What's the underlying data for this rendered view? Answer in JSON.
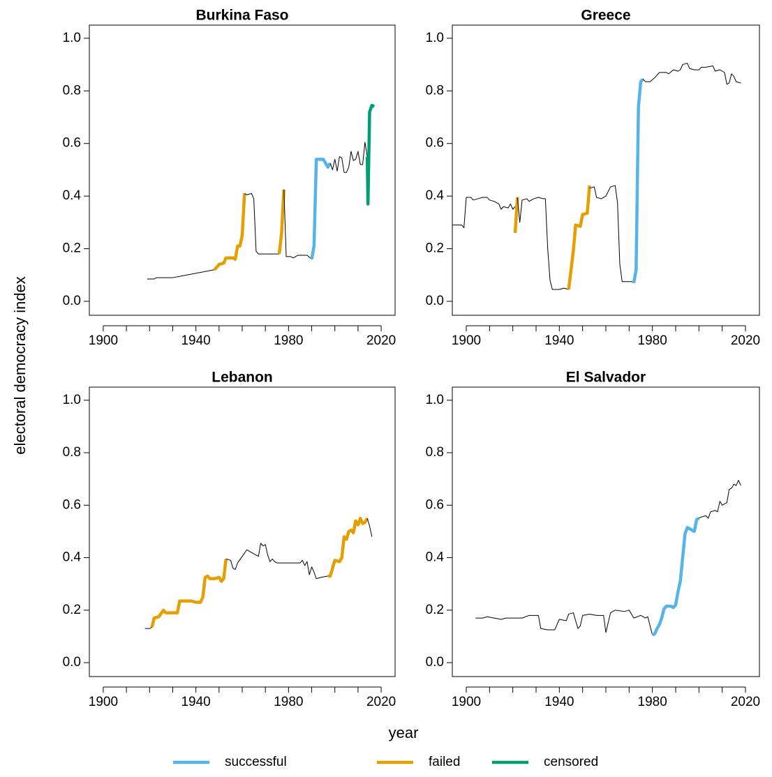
{
  "x_label": "year",
  "y_label": "electoral democracy index",
  "legend": [
    {
      "name": "successful",
      "color": "#56B4E9"
    },
    {
      "name": "failed",
      "color": "#E69F00"
    },
    {
      "name": "censored",
      "color": "#009E73"
    }
  ],
  "chart_data": [
    {
      "type": "line",
      "title": "Burkina Faso",
      "xlim": [
        1894,
        2026
      ],
      "ylim": [
        -0.053,
        1.05
      ],
      "xticks": [
        1900,
        1940,
        1980,
        2020
      ],
      "xminorticks": [
        1910,
        1920,
        1930,
        1950,
        1960,
        1970,
        1990,
        2000,
        2010
      ],
      "yticks": [
        {
          "value": 0,
          "label": "0.0"
        },
        0.2,
        0.4,
        0.6,
        0.8,
        {
          "value": 1,
          "label": "1.0"
        }
      ],
      "series": [
        {
          "color": "#000000",
          "x": [
            1919,
            1922,
            1923,
            1930,
            1948
          ],
          "values": [
            0.085,
            0.085,
            0.09,
            0.09,
            0.12
          ]
        },
        {
          "color": "#E69F00",
          "x": [
            1948,
            1950,
            1952,
            1953,
            1956,
            1957,
            1958,
            1959,
            1960,
            1961
          ],
          "values": [
            0.12,
            0.14,
            0.145,
            0.165,
            0.165,
            0.16,
            0.21,
            0.21,
            0.25,
            0.41
          ]
        },
        {
          "color": "#000000",
          "x": [
            1961,
            1962,
            1964,
            1965,
            1966,
            1967,
            1975,
            1976
          ],
          "values": [
            0.41,
            0.405,
            0.41,
            0.39,
            0.19,
            0.18,
            0.18,
            0.18
          ]
        },
        {
          "color": "#E69F00",
          "x": [
            1976,
            1977,
            1978
          ],
          "values": [
            0.18,
            0.26,
            0.425
          ]
        },
        {
          "color": "#000000",
          "x": [
            1978,
            1979,
            1981,
            1982,
            1984,
            1988,
            1990
          ],
          "values": [
            0.425,
            0.17,
            0.17,
            0.165,
            0.175,
            0.175,
            0.16
          ]
        },
        {
          "color": "#56B4E9",
          "x": [
            1990,
            1991,
            1992,
            1995,
            1997,
            1998
          ],
          "values": [
            0.16,
            0.21,
            0.54,
            0.54,
            0.51,
            0.525
          ]
        },
        {
          "color": "#000000",
          "x": [
            1998,
            1999,
            2000,
            2001,
            2002,
            2003,
            2004,
            2005,
            2006,
            2007,
            2008,
            2009,
            2010,
            2011,
            2012,
            2013,
            2014
          ],
          "values": [
            0.525,
            0.5,
            0.54,
            0.495,
            0.55,
            0.545,
            0.49,
            0.49,
            0.51,
            0.57,
            0.535,
            0.54,
            0.57,
            0.52,
            0.52,
            0.605,
            0.55
          ]
        },
        {
          "color": "#009E73",
          "x": [
            2014,
            2014.3,
            2015,
            2016,
            2017
          ],
          "values": [
            0.55,
            0.37,
            0.72,
            0.745,
            0.74
          ]
        }
      ]
    },
    {
      "type": "line",
      "title": "Greece",
      "xlim": [
        1894,
        2026
      ],
      "ylim": [
        -0.053,
        1.05
      ],
      "xticks": [
        1900,
        1940,
        1980,
        2020
      ],
      "xminorticks": [
        1910,
        1920,
        1930,
        1950,
        1960,
        1970,
        1990,
        2000,
        2010
      ],
      "yticks": [
        {
          "value": 0,
          "label": "0.0"
        },
        0.2,
        0.4,
        0.6,
        0.8,
        {
          "value": 1,
          "label": "1.0"
        }
      ],
      "series": [
        {
          "color": "#000000",
          "x": [
            1894,
            1898,
            1899,
            1900,
            1902,
            1903,
            1905,
            1907,
            1909,
            1910,
            1912,
            1914,
            1915,
            1916,
            1918,
            1919,
            1920,
            1921
          ],
          "values": [
            0.29,
            0.29,
            0.28,
            0.395,
            0.395,
            0.385,
            0.39,
            0.395,
            0.395,
            0.385,
            0.38,
            0.37,
            0.35,
            0.36,
            0.355,
            0.37,
            0.35,
            0.36
          ]
        },
        {
          "color": "#E69F00",
          "x": [
            1921,
            1922
          ],
          "values": [
            0.26,
            0.395
          ]
        },
        {
          "color": "#000000",
          "x": [
            1922,
            1923,
            1924,
            1926,
            1927,
            1929,
            1931,
            1933,
            1934,
            1935,
            1936,
            1937,
            1940,
            1942,
            1944
          ],
          "values": [
            0.395,
            0.3,
            0.385,
            0.39,
            0.38,
            0.39,
            0.395,
            0.39,
            0.39,
            0.2,
            0.08,
            0.045,
            0.045,
            0.05,
            0.045
          ]
        },
        {
          "color": "#E69F00",
          "x": [
            1944,
            1946,
            1947,
            1949,
            1950,
            1952,
            1953
          ],
          "values": [
            0.045,
            0.19,
            0.29,
            0.285,
            0.33,
            0.335,
            0.44
          ]
        },
        {
          "color": "#000000",
          "x": [
            1953,
            1955,
            1956,
            1958,
            1960,
            1962,
            1964,
            1965,
            1966,
            1967,
            1971,
            1972
          ],
          "values": [
            0.43,
            0.435,
            0.395,
            0.39,
            0.4,
            0.435,
            0.44,
            0.375,
            0.14,
            0.075,
            0.075,
            0.07
          ]
        },
        {
          "color": "#56B4E9",
          "x": [
            1972,
            1973,
            1974,
            1975,
            1976
          ],
          "values": [
            0.07,
            0.12,
            0.74,
            0.835,
            0.845
          ]
        },
        {
          "color": "#000000",
          "x": [
            1976,
            1977,
            1979,
            1981,
            1983,
            1986,
            1987,
            1989,
            1991,
            1992,
            1993,
            1995,
            1996,
            1998,
            2000,
            2001,
            2003,
            2006,
            2007,
            2009,
            2010,
            2011,
            2012,
            2013,
            2014,
            2015,
            2016,
            2018
          ],
          "values": [
            0.845,
            0.835,
            0.835,
            0.85,
            0.87,
            0.87,
            0.865,
            0.88,
            0.875,
            0.88,
            0.9,
            0.905,
            0.885,
            0.88,
            0.88,
            0.89,
            0.89,
            0.895,
            0.875,
            0.88,
            0.875,
            0.87,
            0.825,
            0.83,
            0.865,
            0.855,
            0.835,
            0.83
          ]
        }
      ]
    },
    {
      "type": "line",
      "title": "Lebanon",
      "xlim": [
        1894,
        2026
      ],
      "ylim": [
        -0.053,
        1.05
      ],
      "xticks": [
        1900,
        1940,
        1980,
        2020
      ],
      "xminorticks": [
        1910,
        1920,
        1930,
        1950,
        1960,
        1970,
        1990,
        2000,
        2010
      ],
      "yticks": [
        {
          "value": 0,
          "label": "0.0"
        },
        0.2,
        0.4,
        0.6,
        0.8,
        {
          "value": 1,
          "label": "1.0"
        }
      ],
      "series": [
        {
          "color": "#000000",
          "x": [
            1918,
            1920,
            1921
          ],
          "values": [
            0.13,
            0.13,
            0.135
          ]
        },
        {
          "color": "#E69F00",
          "x": [
            1921,
            1922,
            1924,
            1926,
            1927,
            1932,
            1933,
            1938,
            1940,
            1942,
            1943,
            1944,
            1945,
            1946,
            1948,
            1950,
            1951,
            1952,
            1953
          ],
          "values": [
            0.135,
            0.17,
            0.175,
            0.2,
            0.19,
            0.19,
            0.235,
            0.235,
            0.23,
            0.23,
            0.25,
            0.325,
            0.33,
            0.32,
            0.32,
            0.325,
            0.31,
            0.32,
            0.395
          ]
        },
        {
          "color": "#000000",
          "x": [
            1953,
            1955,
            1956,
            1957,
            1958,
            1960,
            1962,
            1964,
            1966,
            1967,
            1968,
            1969,
            1970,
            1971,
            1972,
            1973,
            1974,
            1975,
            1985,
            1986,
            1987,
            1988,
            1989,
            1990,
            1991,
            1992,
            1994,
            1997
          ],
          "values": [
            0.395,
            0.39,
            0.36,
            0.355,
            0.38,
            0.405,
            0.43,
            0.42,
            0.41,
            0.405,
            0.455,
            0.445,
            0.45,
            0.41,
            0.385,
            0.395,
            0.385,
            0.38,
            0.38,
            0.39,
            0.37,
            0.385,
            0.335,
            0.365,
            0.345,
            0.32,
            0.325,
            0.33
          ]
        },
        {
          "color": "#E69F00",
          "x": [
            1997,
            1998,
            2000,
            2002,
            2003,
            2004,
            2005,
            2006,
            2007,
            2008,
            2009,
            2010,
            2011,
            2012,
            2013,
            2014
          ],
          "values": [
            0.33,
            0.33,
            0.39,
            0.385,
            0.4,
            0.48,
            0.47,
            0.5,
            0.505,
            0.495,
            0.54,
            0.525,
            0.55,
            0.53,
            0.535,
            0.55
          ]
        },
        {
          "color": "#000000",
          "x": [
            2014,
            2015,
            2016
          ],
          "values": [
            0.55,
            0.52,
            0.48
          ]
        }
      ]
    },
    {
      "type": "line",
      "title": "El Salvador",
      "xlim": [
        1894,
        2026
      ],
      "ylim": [
        -0.053,
        1.05
      ],
      "xticks": [
        1900,
        1940,
        1980,
        2020
      ],
      "xminorticks": [
        1910,
        1920,
        1930,
        1950,
        1960,
        1970,
        1990,
        2000,
        2010
      ],
      "yticks": [
        {
          "value": 0,
          "label": "0.0"
        },
        0.2,
        0.4,
        0.6,
        0.8,
        {
          "value": 1,
          "label": "1.0"
        }
      ],
      "series": [
        {
          "color": "#000000",
          "x": [
            1904,
            1907,
            1909,
            1915,
            1917,
            1924,
            1927,
            1931,
            1932,
            1935,
            1938,
            1940,
            1943,
            1944,
            1946,
            1948,
            1949,
            1950,
            1953,
            1956,
            1959,
            1960,
            1962,
            1964,
            1968,
            1970,
            1972,
            1975,
            1977,
            1978,
            1980
          ],
          "values": [
            0.17,
            0.17,
            0.175,
            0.165,
            0.17,
            0.17,
            0.18,
            0.18,
            0.13,
            0.125,
            0.125,
            0.165,
            0.16,
            0.185,
            0.19,
            0.13,
            0.14,
            0.18,
            0.185,
            0.18,
            0.18,
            0.115,
            0.19,
            0.2,
            0.195,
            0.2,
            0.17,
            0.18,
            0.17,
            0.175,
            0.105
          ]
        },
        {
          "color": "#56B4E9",
          "x": [
            1980,
            1981,
            1982,
            1983,
            1984,
            1985,
            1986,
            1988,
            1989,
            1990,
            1991,
            1992,
            1993,
            1994,
            1995,
            1996,
            1997,
            1998,
            1999,
            2000
          ],
          "values": [
            0.105,
            0.11,
            0.13,
            0.145,
            0.17,
            0.205,
            0.215,
            0.215,
            0.21,
            0.22,
            0.27,
            0.31,
            0.4,
            0.49,
            0.515,
            0.51,
            0.505,
            0.5,
            0.545,
            0.55
          ]
        },
        {
          "color": "#000000",
          "x": [
            2000,
            2001,
            2003,
            2004,
            2005,
            2007,
            2008,
            2009,
            2010,
            2011,
            2012,
            2013,
            2014,
            2015,
            2016,
            2017,
            2018
          ],
          "values": [
            0.55,
            0.555,
            0.56,
            0.55,
            0.575,
            0.58,
            0.575,
            0.615,
            0.6,
            0.605,
            0.61,
            0.66,
            0.665,
            0.68,
            0.675,
            0.695,
            0.675
          ]
        }
      ]
    }
  ]
}
